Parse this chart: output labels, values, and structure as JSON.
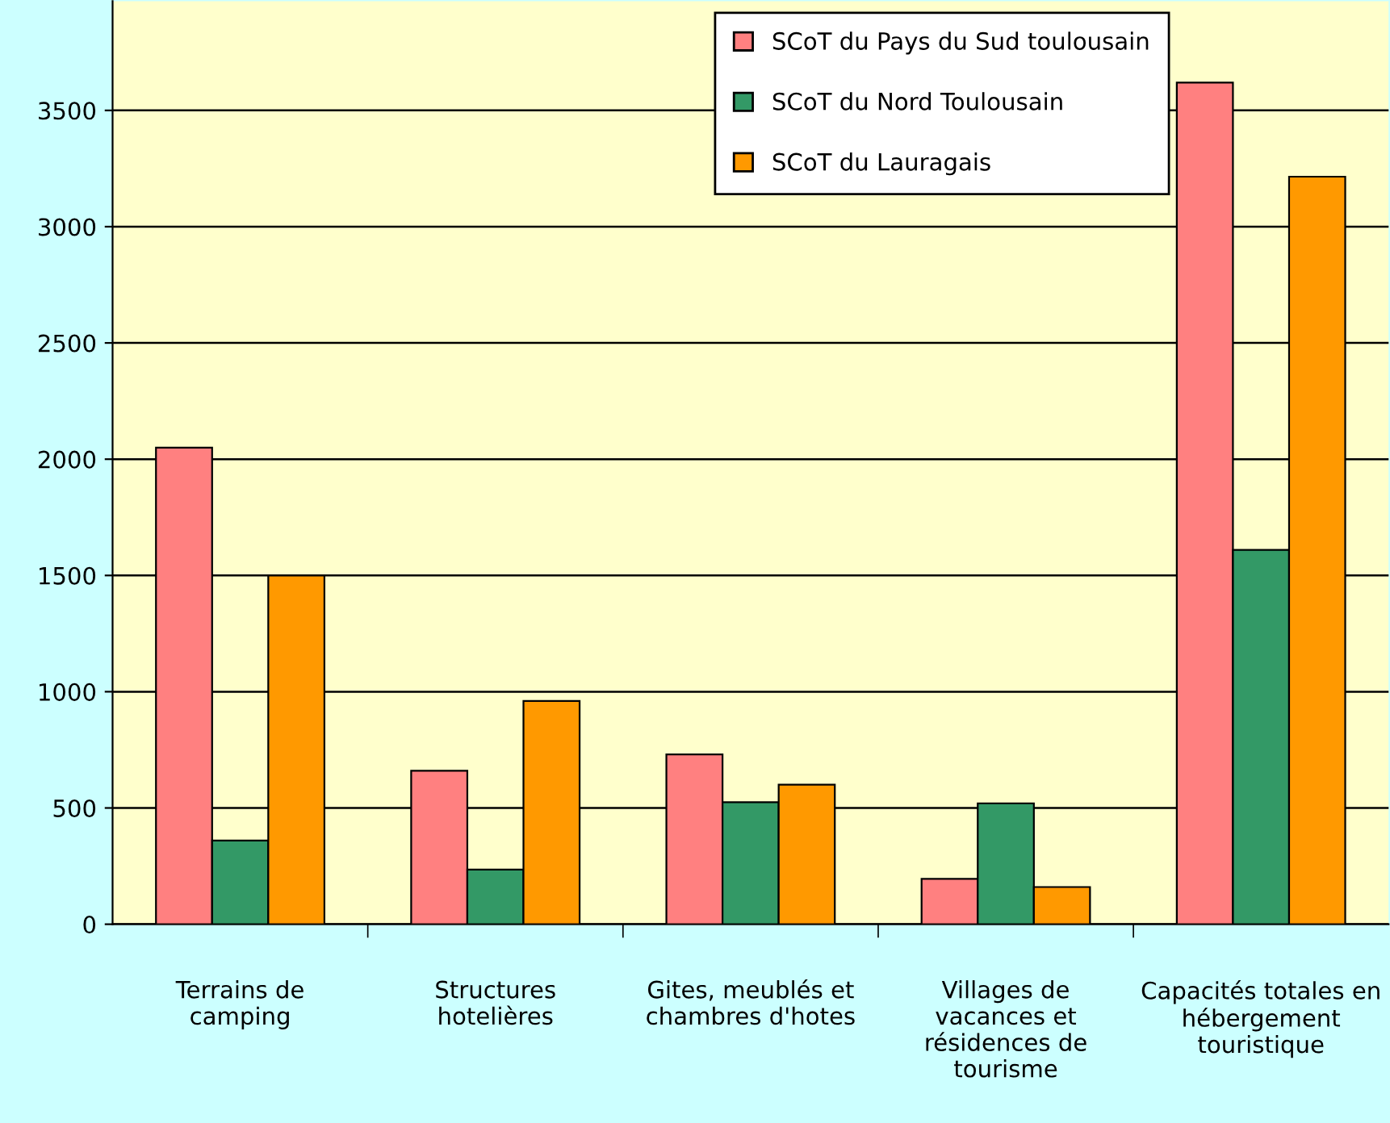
{
  "chart_data": {
    "type": "bar",
    "categories": [
      "Terrains de\ncamping",
      "Structures\nhotelières",
      "Gites, meublés et\nchambres d'hotes",
      "Villages de\nvacances et\nrésidences de\ntourisme",
      "Capacités totales en\nhébergement\ntouristique"
    ],
    "series": [
      {
        "name": "SCoT du Pays du Sud toulousain",
        "color": "#ff8080",
        "values": [
          2050,
          660,
          730,
          195,
          3620
        ]
      },
      {
        "name": "SCoT du Nord Toulousain",
        "color": "#339966",
        "values": [
          360,
          235,
          525,
          520,
          1610
        ]
      },
      {
        "name": "SCoT du Lauragais",
        "color": "#ff9900",
        "values": [
          1500,
          960,
          600,
          160,
          3215
        ]
      }
    ],
    "ylim": [
      0,
      3970
    ],
    "yticks": [
      0,
      500,
      1000,
      1500,
      2000,
      2500,
      3000,
      3500
    ],
    "grid": "y",
    "legend": "top center"
  }
}
